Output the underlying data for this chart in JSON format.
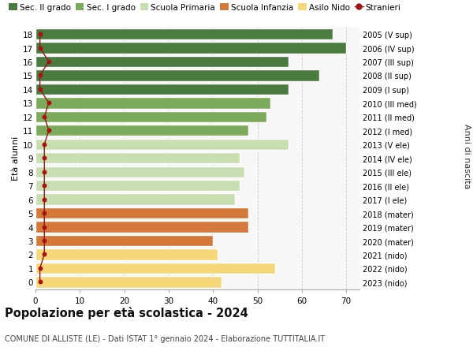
{
  "ages": [
    18,
    17,
    16,
    15,
    14,
    13,
    12,
    11,
    10,
    9,
    8,
    7,
    6,
    5,
    4,
    3,
    2,
    1,
    0
  ],
  "right_labels": [
    "2005 (V sup)",
    "2006 (IV sup)",
    "2007 (III sup)",
    "2008 (II sup)",
    "2009 (I sup)",
    "2010 (III med)",
    "2011 (II med)",
    "2012 (I med)",
    "2013 (V ele)",
    "2014 (IV ele)",
    "2015 (III ele)",
    "2016 (II ele)",
    "2017 (I ele)",
    "2018 (mater)",
    "2019 (mater)",
    "2020 (mater)",
    "2021 (nido)",
    "2022 (nido)",
    "2023 (nido)"
  ],
  "bar_values": [
    67,
    70,
    57,
    64,
    57,
    53,
    52,
    48,
    57,
    46,
    47,
    46,
    45,
    48,
    48,
    40,
    41,
    54,
    42
  ],
  "bar_colors": [
    "#4a7c3f",
    "#4a7c3f",
    "#4a7c3f",
    "#4a7c3f",
    "#4a7c3f",
    "#7dab5c",
    "#7dab5c",
    "#7dab5c",
    "#c8ddb0",
    "#c8ddb0",
    "#c8ddb0",
    "#c8ddb0",
    "#c8ddb0",
    "#d4793a",
    "#d4793a",
    "#d4793a",
    "#f5d87a",
    "#f5d87a",
    "#f5d87a"
  ],
  "stranieri_values": [
    1,
    1,
    3,
    1,
    1,
    3,
    2,
    3,
    2,
    2,
    2,
    2,
    2,
    2,
    2,
    2,
    2,
    1,
    1
  ],
  "legend_labels": [
    "Sec. II grado",
    "Sec. I grado",
    "Scuola Primaria",
    "Scuola Infanzia",
    "Asilo Nido",
    "Stranieri"
  ],
  "legend_colors": [
    "#4a7c3f",
    "#7dab5c",
    "#c8ddb0",
    "#d4793a",
    "#f5d87a",
    "#a01010"
  ],
  "title": "Popolazione per età scolastica - 2024",
  "subtitle": "COMUNE DI ALLISTE (LE) - Dati ISTAT 1° gennaio 2024 - Elaborazione TUTTITALIA.IT",
  "ylabel_left": "Età alunni",
  "ylabel_right": "Anni di nascita",
  "xlim": [
    0,
    73
  ],
  "xticks": [
    0,
    10,
    20,
    30,
    40,
    50,
    60,
    70
  ],
  "bg_color": "#ffffff",
  "bar_bg_color": "#f7f7f7",
  "grid_color": "#cccccc"
}
